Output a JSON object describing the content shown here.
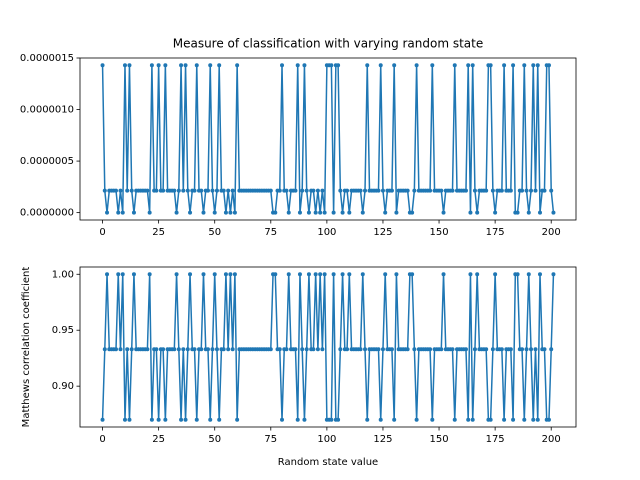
{
  "chart_data": [
    {
      "type": "line",
      "title": "Measure of classification with varying random state",
      "color": "#1f77b4",
      "xlim": [
        -10.05,
        211.05
      ],
      "xticks": [
        0,
        25,
        50,
        75,
        100,
        125,
        150,
        175,
        200
      ],
      "ylim": [
        -7.15e-08,
        1.5e-06
      ],
      "yticks": [
        {
          "value": 0,
          "label": "0.0000000"
        },
        {
          "value": 5e-07,
          "label": "0.0000005"
        },
        {
          "value": 1e-06,
          "label": "0.0000010"
        },
        {
          "value": 1.5e-06,
          "label": "0.0000015"
        }
      ],
      "x": [
        0,
        1,
        2,
        3,
        4,
        5,
        6,
        7,
        8,
        9,
        10,
        11,
        12,
        13,
        14,
        15,
        16,
        17,
        18,
        19,
        20,
        21,
        22,
        23,
        24,
        25,
        26,
        27,
        28,
        29,
        30,
        31,
        32,
        33,
        34,
        35,
        36,
        37,
        38,
        39,
        40,
        41,
        42,
        43,
        44,
        45,
        46,
        47,
        48,
        49,
        50,
        51,
        52,
        53,
        54,
        55,
        56,
        57,
        58,
        59,
        60,
        61,
        62,
        63,
        64,
        65,
        66,
        67,
        68,
        69,
        70,
        71,
        72,
        73,
        74,
        75,
        76,
        77,
        78,
        79,
        80,
        81,
        82,
        83,
        84,
        85,
        86,
        87,
        88,
        89,
        90,
        91,
        92,
        93,
        94,
        95,
        96,
        97,
        98,
        99,
        100,
        101,
        102,
        103,
        104,
        105,
        106,
        107,
        108,
        109,
        110,
        111,
        112,
        113,
        114,
        115,
        116,
        117,
        118,
        119,
        120,
        121,
        122,
        123,
        124,
        125,
        126,
        127,
        128,
        129,
        130,
        131,
        132,
        133,
        134,
        135,
        136,
        137,
        138,
        139,
        140,
        141,
        142,
        143,
        144,
        145,
        146,
        147,
        148,
        149,
        150,
        151,
        152,
        153,
        154,
        155,
        156,
        157,
        158,
        159,
        160,
        161,
        162,
        163,
        164,
        165,
        166,
        167,
        168,
        169,
        170,
        171,
        172,
        173,
        174,
        175,
        176,
        177,
        178,
        179,
        180,
        181,
        182,
        183,
        184,
        185,
        186,
        187,
        188,
        189,
        190,
        191,
        192,
        193,
        194,
        195,
        196,
        197,
        198,
        199,
        200,
        201
      ],
      "values": [
        1.43e-06,
        2.14e-07,
        0,
        2.14e-07,
        2.14e-07,
        2.14e-07,
        2.14e-07,
        0,
        2.14e-07,
        0,
        1.43e-06,
        2.14e-07,
        1.43e-06,
        2.14e-07,
        0,
        2.14e-07,
        2.14e-07,
        2.14e-07,
        2.14e-07,
        2.14e-07,
        2.14e-07,
        0,
        1.43e-06,
        2.14e-07,
        2.14e-07,
        1.43e-06,
        2.14e-07,
        2.14e-07,
        1.43e-06,
        2.14e-07,
        2.14e-07,
        2.14e-07,
        2.14e-07,
        0,
        2.14e-07,
        1.43e-06,
        2.14e-07,
        1.43e-06,
        2.14e-07,
        0,
        2.14e-07,
        2.14e-07,
        1.43e-06,
        2.14e-07,
        2.14e-07,
        0,
        2.14e-07,
        2.14e-07,
        1.43e-06,
        2.14e-07,
        0,
        2.14e-07,
        1.43e-06,
        2.14e-07,
        2.14e-07,
        0,
        2.14e-07,
        0,
        2.14e-07,
        0,
        1.43e-06,
        2.14e-07,
        2.14e-07,
        2.14e-07,
        2.14e-07,
        2.14e-07,
        2.14e-07,
        2.14e-07,
        2.14e-07,
        2.14e-07,
        2.14e-07,
        2.14e-07,
        2.14e-07,
        2.14e-07,
        2.14e-07,
        2.14e-07,
        0,
        0,
        2.14e-07,
        2.14e-07,
        1.43e-06,
        2.14e-07,
        2.14e-07,
        0,
        2.14e-07,
        2.14e-07,
        2.14e-07,
        1.43e-06,
        0,
        2.14e-07,
        1.43e-06,
        2.14e-07,
        0,
        2.14e-07,
        2.14e-07,
        0,
        2.14e-07,
        0,
        2.14e-07,
        0,
        1.43e-06,
        1.43e-06,
        1.43e-06,
        0,
        1.43e-06,
        1.43e-06,
        2.14e-07,
        0,
        2.14e-07,
        2.14e-07,
        0,
        2.14e-07,
        2.14e-07,
        2.14e-07,
        2.14e-07,
        2.14e-07,
        0,
        2.14e-07,
        1.43e-06,
        2.14e-07,
        2.14e-07,
        2.14e-07,
        2.14e-07,
        2.14e-07,
        1.43e-06,
        2.14e-07,
        0,
        2.14e-07,
        2.14e-07,
        2.14e-07,
        1.43e-06,
        0,
        2.14e-07,
        2.14e-07,
        2.14e-07,
        2.14e-07,
        2.14e-07,
        0,
        0,
        2.14e-07,
        1.43e-06,
        2.14e-07,
        2.14e-07,
        2.14e-07,
        2.14e-07,
        2.14e-07,
        2.14e-07,
        1.43e-06,
        2.14e-07,
        2.14e-07,
        2.14e-07,
        2.14e-07,
        0,
        2.14e-07,
        2.14e-07,
        2.14e-07,
        2.14e-07,
        1.43e-06,
        2.14e-07,
        2.14e-07,
        2.14e-07,
        2.14e-07,
        2.14e-07,
        1.43e-06,
        0,
        1.43e-06,
        2.14e-07,
        0,
        2.14e-07,
        2.14e-07,
        2.14e-07,
        2.14e-07,
        1.43e-06,
        1.43e-06,
        2.14e-07,
        0,
        2.14e-07,
        2.14e-07,
        2.14e-07,
        1.43e-06,
        2.14e-07,
        2.14e-07,
        2.14e-07,
        1.43e-06,
        0,
        0,
        2.14e-07,
        2.14e-07,
        1.43e-06,
        2.14e-07,
        0,
        2.14e-07,
        1.43e-06,
        2.14e-07,
        1.43e-06,
        0,
        2.14e-07,
        2.14e-07,
        1.43e-06,
        1.43e-06,
        2.14e-07,
        0
      ]
    },
    {
      "type": "line",
      "xlabel": "Random state value",
      "ylabel": "Matthews correlation coefficient",
      "color": "#1f77b4",
      "xlim": [
        -10.05,
        211.05
      ],
      "xticks": [
        0,
        25,
        50,
        75,
        100,
        125,
        150,
        175,
        200
      ],
      "ylim": [
        0.8635,
        1.0065
      ],
      "yticks": [
        {
          "value": 0.9,
          "label": "0.90"
        },
        {
          "value": 0.95,
          "label": "0.95"
        },
        {
          "value": 1,
          "label": "1.00"
        }
      ],
      "x": [
        0,
        1,
        2,
        3,
        4,
        5,
        6,
        7,
        8,
        9,
        10,
        11,
        12,
        13,
        14,
        15,
        16,
        17,
        18,
        19,
        20,
        21,
        22,
        23,
        24,
        25,
        26,
        27,
        28,
        29,
        30,
        31,
        32,
        33,
        34,
        35,
        36,
        37,
        38,
        39,
        40,
        41,
        42,
        43,
        44,
        45,
        46,
        47,
        48,
        49,
        50,
        51,
        52,
        53,
        54,
        55,
        56,
        57,
        58,
        59,
        60,
        61,
        62,
        63,
        64,
        65,
        66,
        67,
        68,
        69,
        70,
        71,
        72,
        73,
        74,
        75,
        76,
        77,
        78,
        79,
        80,
        81,
        82,
        83,
        84,
        85,
        86,
        87,
        88,
        89,
        90,
        91,
        92,
        93,
        94,
        95,
        96,
        97,
        98,
        99,
        100,
        101,
        102,
        103,
        104,
        105,
        106,
        107,
        108,
        109,
        110,
        111,
        112,
        113,
        114,
        115,
        116,
        117,
        118,
        119,
        120,
        121,
        122,
        123,
        124,
        125,
        126,
        127,
        128,
        129,
        130,
        131,
        132,
        133,
        134,
        135,
        136,
        137,
        138,
        139,
        140,
        141,
        142,
        143,
        144,
        145,
        146,
        147,
        148,
        149,
        150,
        151,
        152,
        153,
        154,
        155,
        156,
        157,
        158,
        159,
        160,
        161,
        162,
        163,
        164,
        165,
        166,
        167,
        168,
        169,
        170,
        171,
        172,
        173,
        174,
        175,
        176,
        177,
        178,
        179,
        180,
        181,
        182,
        183,
        184,
        185,
        186,
        187,
        188,
        189,
        190,
        191,
        192,
        193,
        194,
        195,
        196,
        197,
        198,
        199,
        200,
        201
      ],
      "values": [
        0.87,
        0.933,
        1,
        0.933,
        0.933,
        0.933,
        0.933,
        1,
        0.933,
        1,
        0.87,
        0.933,
        0.87,
        0.933,
        1,
        0.933,
        0.933,
        0.933,
        0.933,
        0.933,
        0.933,
        1,
        0.87,
        0.933,
        0.933,
        0.87,
        0.933,
        0.933,
        0.87,
        0.933,
        0.933,
        0.933,
        0.933,
        1,
        0.933,
        0.87,
        0.933,
        0.87,
        0.933,
        1,
        0.933,
        0.933,
        0.87,
        0.933,
        0.933,
        1,
        0.933,
        0.933,
        0.87,
        0.933,
        1,
        0.933,
        0.87,
        0.933,
        0.933,
        1,
        0.933,
        1,
        0.933,
        1,
        0.87,
        0.933,
        0.933,
        0.933,
        0.933,
        0.933,
        0.933,
        0.933,
        0.933,
        0.933,
        0.933,
        0.933,
        0.933,
        0.933,
        0.933,
        0.933,
        1,
        1,
        0.933,
        0.933,
        0.87,
        0.933,
        0.933,
        1,
        0.933,
        0.933,
        0.933,
        0.87,
        1,
        0.933,
        0.87,
        0.933,
        1,
        0.933,
        0.933,
        1,
        0.933,
        1,
        0.933,
        1,
        0.87,
        0.87,
        0.87,
        1,
        0.87,
        0.87,
        0.933,
        1,
        0.933,
        0.933,
        1,
        0.933,
        0.933,
        0.933,
        0.933,
        0.933,
        1,
        0.933,
        0.87,
        0.933,
        0.933,
        0.933,
        0.933,
        0.933,
        0.87,
        0.933,
        1,
        0.933,
        0.933,
        0.933,
        0.87,
        1,
        0.933,
        0.933,
        0.933,
        0.933,
        0.933,
        1,
        1,
        0.933,
        0.87,
        0.933,
        0.933,
        0.933,
        0.933,
        0.933,
        0.933,
        0.87,
        0.933,
        0.933,
        0.933,
        0.933,
        1,
        0.933,
        0.933,
        0.933,
        0.933,
        0.87,
        0.933,
        0.933,
        0.933,
        0.933,
        0.933,
        0.87,
        1,
        0.87,
        0.933,
        1,
        0.933,
        0.933,
        0.933,
        0.933,
        0.87,
        0.87,
        0.933,
        1,
        0.933,
        0.933,
        0.933,
        0.87,
        0.933,
        0.933,
        0.933,
        0.87,
        1,
        1,
        0.933,
        0.933,
        0.87,
        0.933,
        1,
        0.933,
        0.87,
        0.933,
        0.87,
        1,
        0.933,
        0.933,
        0.87,
        0.87,
        0.933,
        1
      ]
    }
  ]
}
